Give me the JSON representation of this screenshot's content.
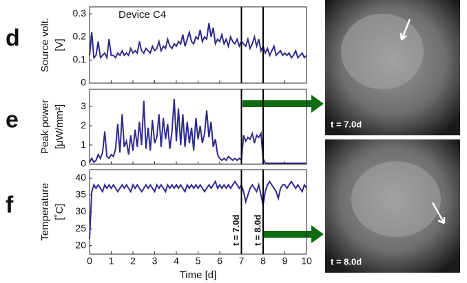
{
  "chart_data": [
    {
      "type": "line",
      "panel": "d",
      "title": "Device C4",
      "ylabel": [
        "Source volt.",
        "[V]"
      ],
      "color": "#2e2a8c",
      "xlim": [
        0,
        10
      ],
      "xticks": [
        0,
        1,
        2,
        3,
        4,
        5,
        6,
        7,
        8,
        9,
        10
      ],
      "ylim": [
        0,
        0.33
      ],
      "yticks": [
        0,
        0.1,
        0.2,
        0.3
      ],
      "vlines": [
        7,
        8
      ],
      "x": [
        0,
        0.1,
        0.2,
        0.3,
        0.4,
        0.5,
        0.6,
        0.7,
        0.8,
        0.9,
        1,
        1.1,
        1.2,
        1.3,
        1.4,
        1.5,
        1.6,
        1.7,
        1.8,
        1.9,
        2,
        2.1,
        2.2,
        2.3,
        2.4,
        2.5,
        2.6,
        2.7,
        2.8,
        2.9,
        3,
        3.1,
        3.2,
        3.3,
        3.4,
        3.5,
        3.6,
        3.7,
        3.8,
        3.9,
        4,
        4.1,
        4.2,
        4.3,
        4.4,
        4.5,
        4.6,
        4.7,
        4.8,
        4.9,
        5,
        5.1,
        5.2,
        5.3,
        5.4,
        5.5,
        5.6,
        5.7,
        5.8,
        5.9,
        6,
        6.1,
        6.2,
        6.3,
        6.4,
        6.5,
        6.6,
        6.7,
        6.8,
        6.9,
        7,
        7.1,
        7.2,
        7.3,
        7.4,
        7.5,
        7.6,
        7.7,
        7.8,
        7.9,
        8,
        8.1,
        8.2,
        8.3,
        8.4,
        8.5,
        8.6,
        8.7,
        8.8,
        8.9,
        9,
        9.1,
        9.2,
        9.3,
        9.4,
        9.5,
        9.6,
        9.7,
        9.8,
        9.9,
        10
      ],
      "values": [
        0.12,
        0.22,
        0.11,
        0.12,
        0.18,
        0.11,
        0.12,
        0.13,
        0.11,
        0.19,
        0.12,
        0.12,
        0.11,
        0.13,
        0.12,
        0.14,
        0.12,
        0.13,
        0.12,
        0.15,
        0.13,
        0.14,
        0.13,
        0.18,
        0.14,
        0.13,
        0.15,
        0.14,
        0.13,
        0.16,
        0.14,
        0.15,
        0.18,
        0.14,
        0.16,
        0.15,
        0.19,
        0.16,
        0.15,
        0.17,
        0.16,
        0.18,
        0.17,
        0.21,
        0.16,
        0.19,
        0.22,
        0.18,
        0.17,
        0.2,
        0.19,
        0.23,
        0.18,
        0.2,
        0.19,
        0.26,
        0.2,
        0.24,
        0.17,
        0.19,
        0.18,
        0.21,
        0.17,
        0.19,
        0.16,
        0.2,
        0.18,
        0.17,
        0.19,
        0.16,
        0.18,
        0.17,
        0.16,
        0.19,
        0.15,
        0.17,
        0.2,
        0.16,
        0.19,
        0.14,
        0.16,
        0.13,
        0.15,
        0.12,
        0.14,
        0.16,
        0.12,
        0.13,
        0.14,
        0.12,
        0.13,
        0.12,
        0.13,
        0.11,
        0.12,
        0.14,
        0.11,
        0.12,
        0.13,
        0.11,
        0.12
      ]
    },
    {
      "type": "line",
      "panel": "e",
      "ylabel": [
        "Peak power",
        "[μW/mm²]"
      ],
      "color": "#2e2a8c",
      "xlim": [
        0,
        10
      ],
      "xticks": [
        0,
        1,
        2,
        3,
        4,
        5,
        6,
        7,
        8,
        9,
        10
      ],
      "ylim": [
        0,
        3.9
      ],
      "yticks": [
        0,
        1,
        2,
        3
      ],
      "vlines": [
        7,
        8
      ],
      "x": [
        0,
        0.1,
        0.2,
        0.3,
        0.4,
        0.5,
        0.6,
        0.7,
        0.8,
        0.9,
        1,
        1.1,
        1.2,
        1.3,
        1.4,
        1.5,
        1.6,
        1.7,
        1.8,
        1.9,
        2,
        2.1,
        2.2,
        2.3,
        2.4,
        2.5,
        2.6,
        2.7,
        2.8,
        2.9,
        3,
        3.1,
        3.2,
        3.3,
        3.4,
        3.5,
        3.6,
        3.7,
        3.8,
        3.9,
        4,
        4.1,
        4.2,
        4.3,
        4.4,
        4.5,
        4.6,
        4.7,
        4.8,
        4.9,
        5,
        5.1,
        5.2,
        5.3,
        5.4,
        5.5,
        5.6,
        5.7,
        5.8,
        5.9,
        6,
        6.1,
        6.2,
        6.3,
        6.4,
        6.5,
        6.6,
        6.7,
        6.8,
        6.9,
        7,
        7.1,
        7.2,
        7.3,
        7.4,
        7.5,
        7.6,
        7.7,
        7.8,
        7.9,
        8,
        8.1,
        8.2,
        8.3,
        8.4,
        8.5,
        8.6,
        8.7,
        8.8,
        8.9,
        9,
        9.1,
        9.2,
        9.3,
        9.4,
        9.5,
        9.6,
        9.7,
        9.8,
        9.9,
        10
      ],
      "values": [
        0.1,
        0.3,
        0.1,
        0.2,
        0.5,
        0.3,
        0.6,
        1.7,
        0.4,
        0.3,
        0.5,
        0.4,
        0.8,
        2.1,
        0.6,
        2.6,
        0.9,
        1.2,
        0.5,
        1.5,
        0.7,
        1.8,
        0.9,
        2.2,
        1.0,
        3.3,
        0.8,
        1.9,
        0.7,
        2.3,
        1.1,
        1.4,
        2.6,
        0.9,
        2.4,
        1.3,
        2.1,
        0.8,
        1.7,
        3.4,
        1.2,
        2.9,
        1.0,
        2.6,
        0.9,
        2.2,
        1.1,
        1.9,
        0.7,
        2.4,
        1.3,
        2.0,
        1.1,
        1.6,
        2.8,
        1.4,
        2.2,
        0.9,
        1.3,
        0.5,
        0.3,
        0.2,
        0.3,
        0.2,
        0.4,
        0.3,
        0.2,
        0.3,
        0.2,
        0.3,
        0.2,
        1.5,
        1.2,
        1.4,
        1.3,
        1.6,
        1.1,
        1.5,
        1.4,
        1.6,
        0.3,
        0.05,
        0.05,
        0.05,
        0.05,
        0.05,
        0.05,
        0.05,
        0.05,
        0.05,
        0.05,
        0.05,
        0.05,
        0.05,
        0.05,
        0.05,
        0.05,
        0.05,
        0.05,
        0.05,
        0.05
      ]
    },
    {
      "type": "line",
      "panel": "f",
      "ylabel": [
        "Temperature",
        "[˚C]"
      ],
      "xlabel": "Time [d]",
      "color": "#2e2a8c",
      "xlim": [
        0,
        10
      ],
      "xticks": [
        0,
        1,
        2,
        3,
        4,
        5,
        6,
        7,
        8,
        9,
        10
      ],
      "ylim": [
        17.5,
        42.5
      ],
      "yticks": [
        20,
        25,
        30,
        35,
        40
      ],
      "vlines": [
        {
          "value": 7,
          "label": "t = 7.0d"
        },
        {
          "value": 8,
          "label": "t = 8.0d"
        }
      ],
      "x": [
        0,
        0.1,
        0.2,
        0.3,
        0.4,
        0.5,
        0.6,
        0.7,
        0.8,
        0.9,
        1,
        1.1,
        1.2,
        1.3,
        1.4,
        1.5,
        1.6,
        1.7,
        1.8,
        1.9,
        2,
        2.1,
        2.2,
        2.3,
        2.4,
        2.5,
        2.6,
        2.7,
        2.8,
        2.9,
        3,
        3.1,
        3.2,
        3.3,
        3.4,
        3.5,
        3.6,
        3.7,
        3.8,
        3.9,
        4,
        4.1,
        4.2,
        4.3,
        4.4,
        4.5,
        4.6,
        4.7,
        4.8,
        4.9,
        5,
        5.1,
        5.2,
        5.3,
        5.4,
        5.5,
        5.6,
        5.7,
        5.8,
        5.9,
        6,
        6.1,
        6.2,
        6.3,
        6.4,
        6.5,
        6.6,
        6.7,
        6.8,
        6.9,
        7,
        7.1,
        7.2,
        7.3,
        7.4,
        7.5,
        7.6,
        7.7,
        7.8,
        7.9,
        8,
        8.1,
        8.2,
        8.3,
        8.4,
        8.5,
        8.6,
        8.7,
        8.8,
        8.9,
        9,
        9.1,
        9.2,
        9.3,
        9.4,
        9.5,
        9.6,
        9.7,
        9.8,
        9.9,
        10
      ],
      "values": [
        22,
        36,
        38,
        37,
        38,
        37,
        36,
        38,
        37,
        38,
        37,
        38,
        37,
        36,
        37,
        38,
        37,
        38,
        37,
        36,
        38,
        37,
        38,
        37,
        36,
        37,
        38,
        37,
        38,
        37,
        36,
        38,
        37,
        38,
        37,
        36,
        38,
        37,
        38,
        37,
        38,
        37,
        38,
        37,
        36,
        38,
        37,
        38,
        37,
        38,
        37,
        38,
        37,
        36,
        37,
        38,
        37,
        38,
        39,
        37,
        38,
        37,
        38,
        37,
        38,
        37,
        38,
        39,
        38,
        37,
        38,
        36,
        33,
        35,
        37,
        38,
        37,
        36,
        38,
        35,
        32,
        36,
        38,
        39,
        38,
        37,
        36,
        34,
        37,
        38,
        38,
        37,
        38,
        39,
        38,
        37,
        38,
        37,
        36,
        38,
        37
      ]
    }
  ],
  "images": [
    {
      "caption": "t = 7.0d"
    },
    {
      "caption": "t = 8.0d"
    }
  ]
}
